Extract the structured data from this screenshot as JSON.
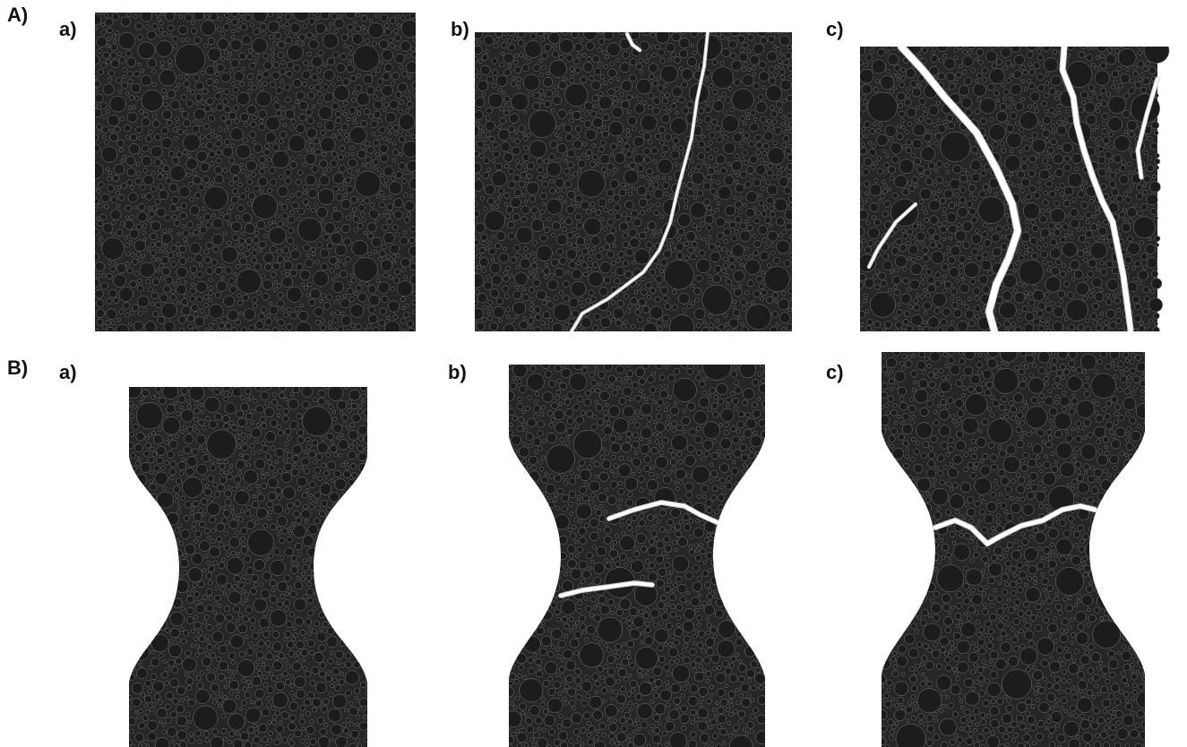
{
  "rows": [
    {
      "label": "A)",
      "panels": [
        {
          "label": "a)",
          "shape": "square",
          "cracks": "none"
        },
        {
          "label": "b)",
          "shape": "square",
          "cracks": "one diagonal crack"
        },
        {
          "label": "c)",
          "shape": "square",
          "cracks": "two wide cracks"
        }
      ]
    },
    {
      "label": "B)",
      "panels": [
        {
          "label": "a)",
          "shape": "dogbone",
          "cracks": "none"
        },
        {
          "label": "b)",
          "shape": "dogbone",
          "cracks": "two horizontal cracks in neck"
        },
        {
          "label": "c)",
          "shape": "dogbone",
          "cracks": "one horizontal crack in neck"
        }
      ]
    }
  ],
  "colors": {
    "particle": "#1c1c1c",
    "crack": "#ffffff",
    "crack_edge": "#d2d2d2",
    "background": "#ffffff"
  }
}
